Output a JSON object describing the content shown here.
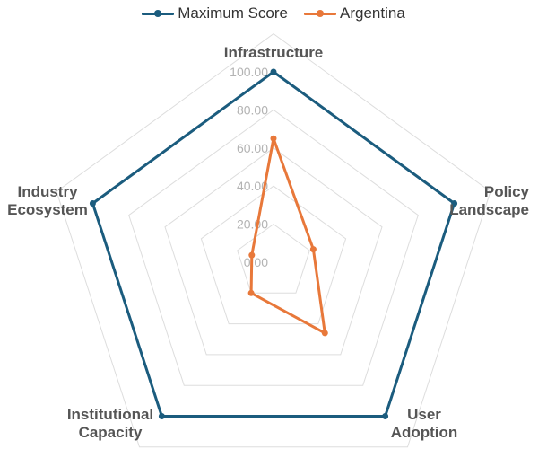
{
  "chart_data": {
    "type": "radar",
    "axes": [
      "Infrastructure",
      "Policy Landscape",
      "User Adoption",
      "Institutional Capacity",
      "Industry Ecosystem"
    ],
    "axis_label_lines": [
      [
        "Infrastructure"
      ],
      [
        "Policy",
        "Landscape"
      ],
      [
        "User",
        "Adoption"
      ],
      [
        "Institutional",
        "Capacity"
      ],
      [
        "Industry",
        "Ecosystem"
      ]
    ],
    "r_ticks": [
      "0.00",
      "20.00",
      "40.00",
      "60.00",
      "80.00",
      "100.00"
    ],
    "r_range": [
      0,
      100
    ],
    "grid_levels": [
      20,
      40,
      60,
      80,
      100,
      120
    ],
    "legend_position": "top",
    "series": [
      {
        "name": "Maximum Score",
        "color": "#1b5c7e",
        "values": [
          100,
          100,
          100,
          100,
          100
        ]
      },
      {
        "name": "Argentina",
        "color": "#e8783a",
        "values": [
          65,
          22,
          46,
          20,
          12
        ]
      }
    ]
  }
}
